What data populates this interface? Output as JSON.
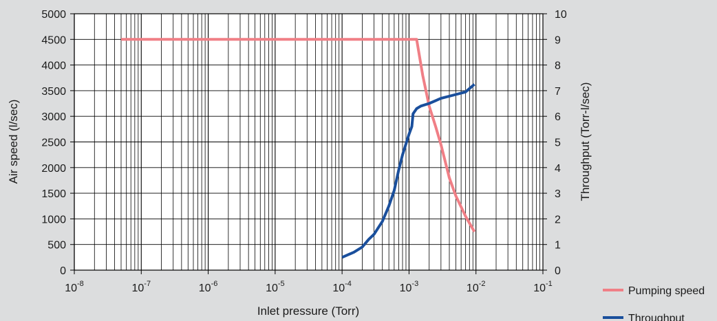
{
  "chart_data": {
    "type": "line",
    "xlabel": "Inlet pressure (Torr)",
    "ylabel_left": "Air speed (l/sec)",
    "ylabel_right": "Throughput (Torr-l/sec)",
    "x_scale": "log",
    "xlim": [
      1e-08,
      0.1
    ],
    "x_ticks": [
      {
        "base": "10",
        "exp": "-8",
        "value": 1e-08
      },
      {
        "base": "10",
        "exp": "-7",
        "value": 1e-07
      },
      {
        "base": "10",
        "exp": "-6",
        "value": 1e-06
      },
      {
        "base": "10",
        "exp": "-5",
        "value": 1e-05
      },
      {
        "base": "10",
        "exp": "-4",
        "value": 0.0001
      },
      {
        "base": "10",
        "exp": "-3",
        "value": 0.001
      },
      {
        "base": "10",
        "exp": "-2",
        "value": 0.01
      },
      {
        "base": "10",
        "exp": "-1",
        "value": 0.1
      }
    ],
    "ylim_left": [
      0,
      5000
    ],
    "y_ticks_left": [
      "0",
      "500",
      "1000",
      "1500",
      "2000",
      "2500",
      "3000",
      "3500",
      "4000",
      "4500",
      "5000"
    ],
    "ylim_right": [
      0,
      10
    ],
    "y_ticks_right": [
      "0",
      "1",
      "2",
      "3",
      "4",
      "5",
      "6",
      "7",
      "8",
      "9",
      "10"
    ],
    "grid": true,
    "legend_position": "bottom-right",
    "series": [
      {
        "name": "Pumping speed",
        "axis": "left",
        "color": "#f07f86",
        "points": [
          [
            5e-08,
            4500
          ],
          [
            1e-07,
            4500
          ],
          [
            1e-06,
            4500
          ],
          [
            1e-05,
            4500
          ],
          [
            0.0001,
            4500
          ],
          [
            0.0011,
            4500
          ],
          [
            0.0013,
            4500
          ],
          [
            0.0016,
            3800
          ],
          [
            0.002,
            3200
          ],
          [
            0.0025,
            2800
          ],
          [
            0.003,
            2450
          ],
          [
            0.004,
            1800
          ],
          [
            0.005,
            1450
          ],
          [
            0.007,
            1050
          ],
          [
            0.0095,
            750
          ]
        ]
      },
      {
        "name": "Throughput",
        "axis": "right",
        "color": "#1a4f9c",
        "points": [
          [
            0.0001,
            0.5
          ],
          [
            0.00015,
            0.7
          ],
          [
            0.0002,
            0.9
          ],
          [
            0.00025,
            1.2
          ],
          [
            0.0003,
            1.4
          ],
          [
            0.0004,
            1.9
          ],
          [
            0.0005,
            2.5
          ],
          [
            0.0006,
            3.1
          ],
          [
            0.0007,
            3.9
          ],
          [
            0.0008,
            4.5
          ],
          [
            0.001,
            5.3
          ],
          [
            0.0011,
            5.6
          ],
          [
            0.00115,
            6.1
          ],
          [
            0.0013,
            6.3
          ],
          [
            0.0015,
            6.4
          ],
          [
            0.002,
            6.5
          ],
          [
            0.003,
            6.7
          ],
          [
            0.005,
            6.85
          ],
          [
            0.007,
            6.95
          ],
          [
            0.0095,
            7.25
          ]
        ]
      }
    ]
  }
}
